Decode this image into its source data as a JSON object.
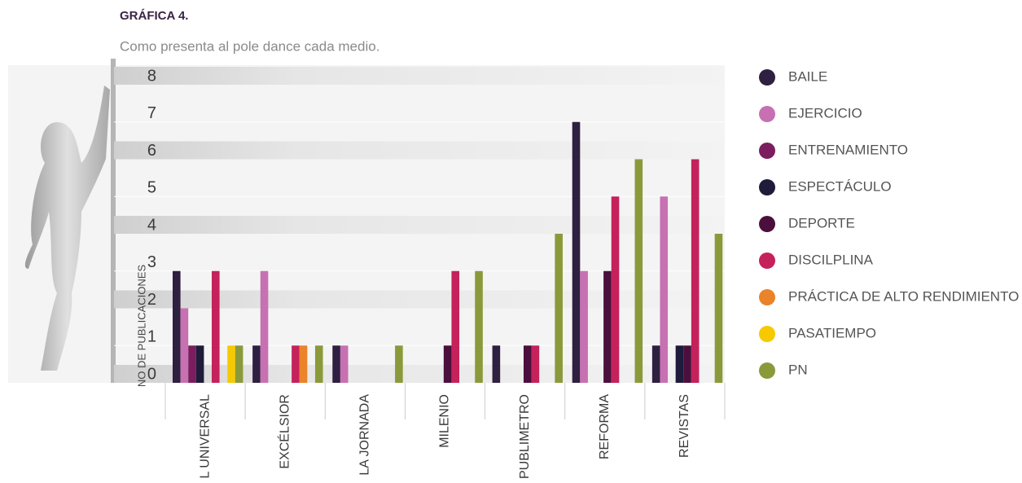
{
  "chart_data": {
    "type": "bar",
    "title": "GRÁFICA 4.",
    "subtitle": "Como presenta al pole dance cada medio.",
    "y_label": "NO DE PUBLICACIONES",
    "categories": [
      "EL UNIVERSAL",
      "EXCÉLSIOR",
      "LA JORNADA",
      "MILENIO",
      "PUBLIMETRO",
      "REFORMA",
      "REVISTAS"
    ],
    "series": [
      {
        "name": "BAILE",
        "color": "#2f1f40",
        "values": [
          3,
          1,
          1,
          0,
          1,
          7,
          1
        ]
      },
      {
        "name": "EJERCICIO",
        "color": "#c770b2",
        "values": [
          2,
          3,
          1,
          0,
          0,
          3,
          5
        ]
      },
      {
        "name": "ENTRENAMIENTO",
        "color": "#7b1d5e",
        "values": [
          1,
          0,
          0,
          0,
          0,
          0,
          0
        ]
      },
      {
        "name": "ESPECTÁCULO",
        "color": "#1f1b3b",
        "values": [
          1,
          0,
          0,
          0,
          0,
          0,
          1
        ]
      },
      {
        "name": "DEPORTE",
        "color": "#4b0f3d",
        "values": [
          0,
          0,
          0,
          1,
          1,
          3,
          1
        ]
      },
      {
        "name": "DISCILPLINA",
        "color": "#c5215b",
        "values": [
          3,
          1,
          0,
          3,
          1,
          5,
          6
        ]
      },
      {
        "name": "PRÁCTICA DE ALTO RENDIMIENTO",
        "color": "#ea8329",
        "values": [
          0,
          1,
          0,
          0,
          0,
          0,
          0
        ]
      },
      {
        "name": "PASATIEMPO",
        "color": "#f6c900",
        "values": [
          1,
          0,
          0,
          0,
          0,
          0,
          0
        ]
      },
      {
        "name": "PN",
        "color": "#8a9a3b",
        "values": [
          1,
          1,
          1,
          3,
          4,
          6,
          4
        ]
      }
    ],
    "ylim": [
      0,
      8
    ],
    "yticks": [
      0,
      1,
      2,
      3,
      4,
      5,
      6,
      7,
      8
    ],
    "legend": "right"
  }
}
